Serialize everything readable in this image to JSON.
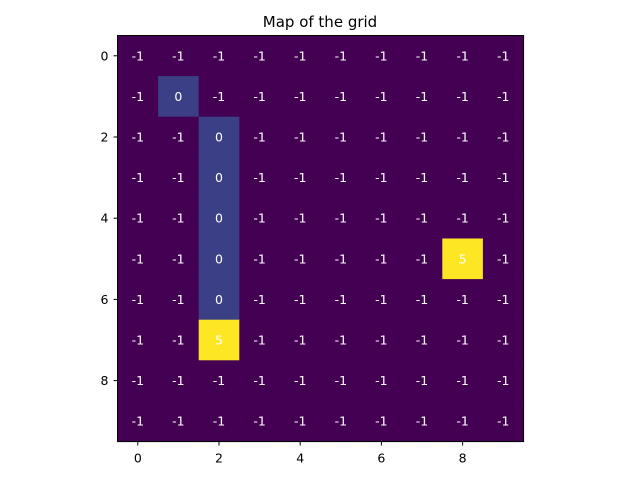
{
  "chart_data": {
    "type": "heatmap",
    "title": "Map of the grid",
    "xlabel": "",
    "ylabel": "",
    "x_ticks": [
      0,
      2,
      4,
      6,
      8
    ],
    "y_ticks": [
      0,
      2,
      4,
      6,
      8
    ],
    "grid": false,
    "colormap": "viridis",
    "value_colors": {
      "-1": "#440154",
      "0": "#3b3f86",
      "5": "#fde725"
    },
    "matrix": [
      [
        -1,
        -1,
        -1,
        -1,
        -1,
        -1,
        -1,
        -1,
        -1,
        -1
      ],
      [
        -1,
        0,
        -1,
        -1,
        -1,
        -1,
        -1,
        -1,
        -1,
        -1
      ],
      [
        -1,
        -1,
        0,
        -1,
        -1,
        -1,
        -1,
        -1,
        -1,
        -1
      ],
      [
        -1,
        -1,
        0,
        -1,
        -1,
        -1,
        -1,
        -1,
        -1,
        -1
      ],
      [
        -1,
        -1,
        0,
        -1,
        -1,
        -1,
        -1,
        -1,
        -1,
        -1
      ],
      [
        -1,
        -1,
        0,
        -1,
        -1,
        -1,
        -1,
        -1,
        5,
        -1
      ],
      [
        -1,
        -1,
        0,
        -1,
        -1,
        -1,
        -1,
        -1,
        -1,
        -1
      ],
      [
        -1,
        -1,
        5,
        -1,
        -1,
        -1,
        -1,
        -1,
        -1,
        -1
      ],
      [
        -1,
        -1,
        -1,
        -1,
        -1,
        -1,
        -1,
        -1,
        -1,
        -1
      ],
      [
        -1,
        -1,
        -1,
        -1,
        -1,
        -1,
        -1,
        -1,
        -1,
        -1
      ]
    ]
  }
}
